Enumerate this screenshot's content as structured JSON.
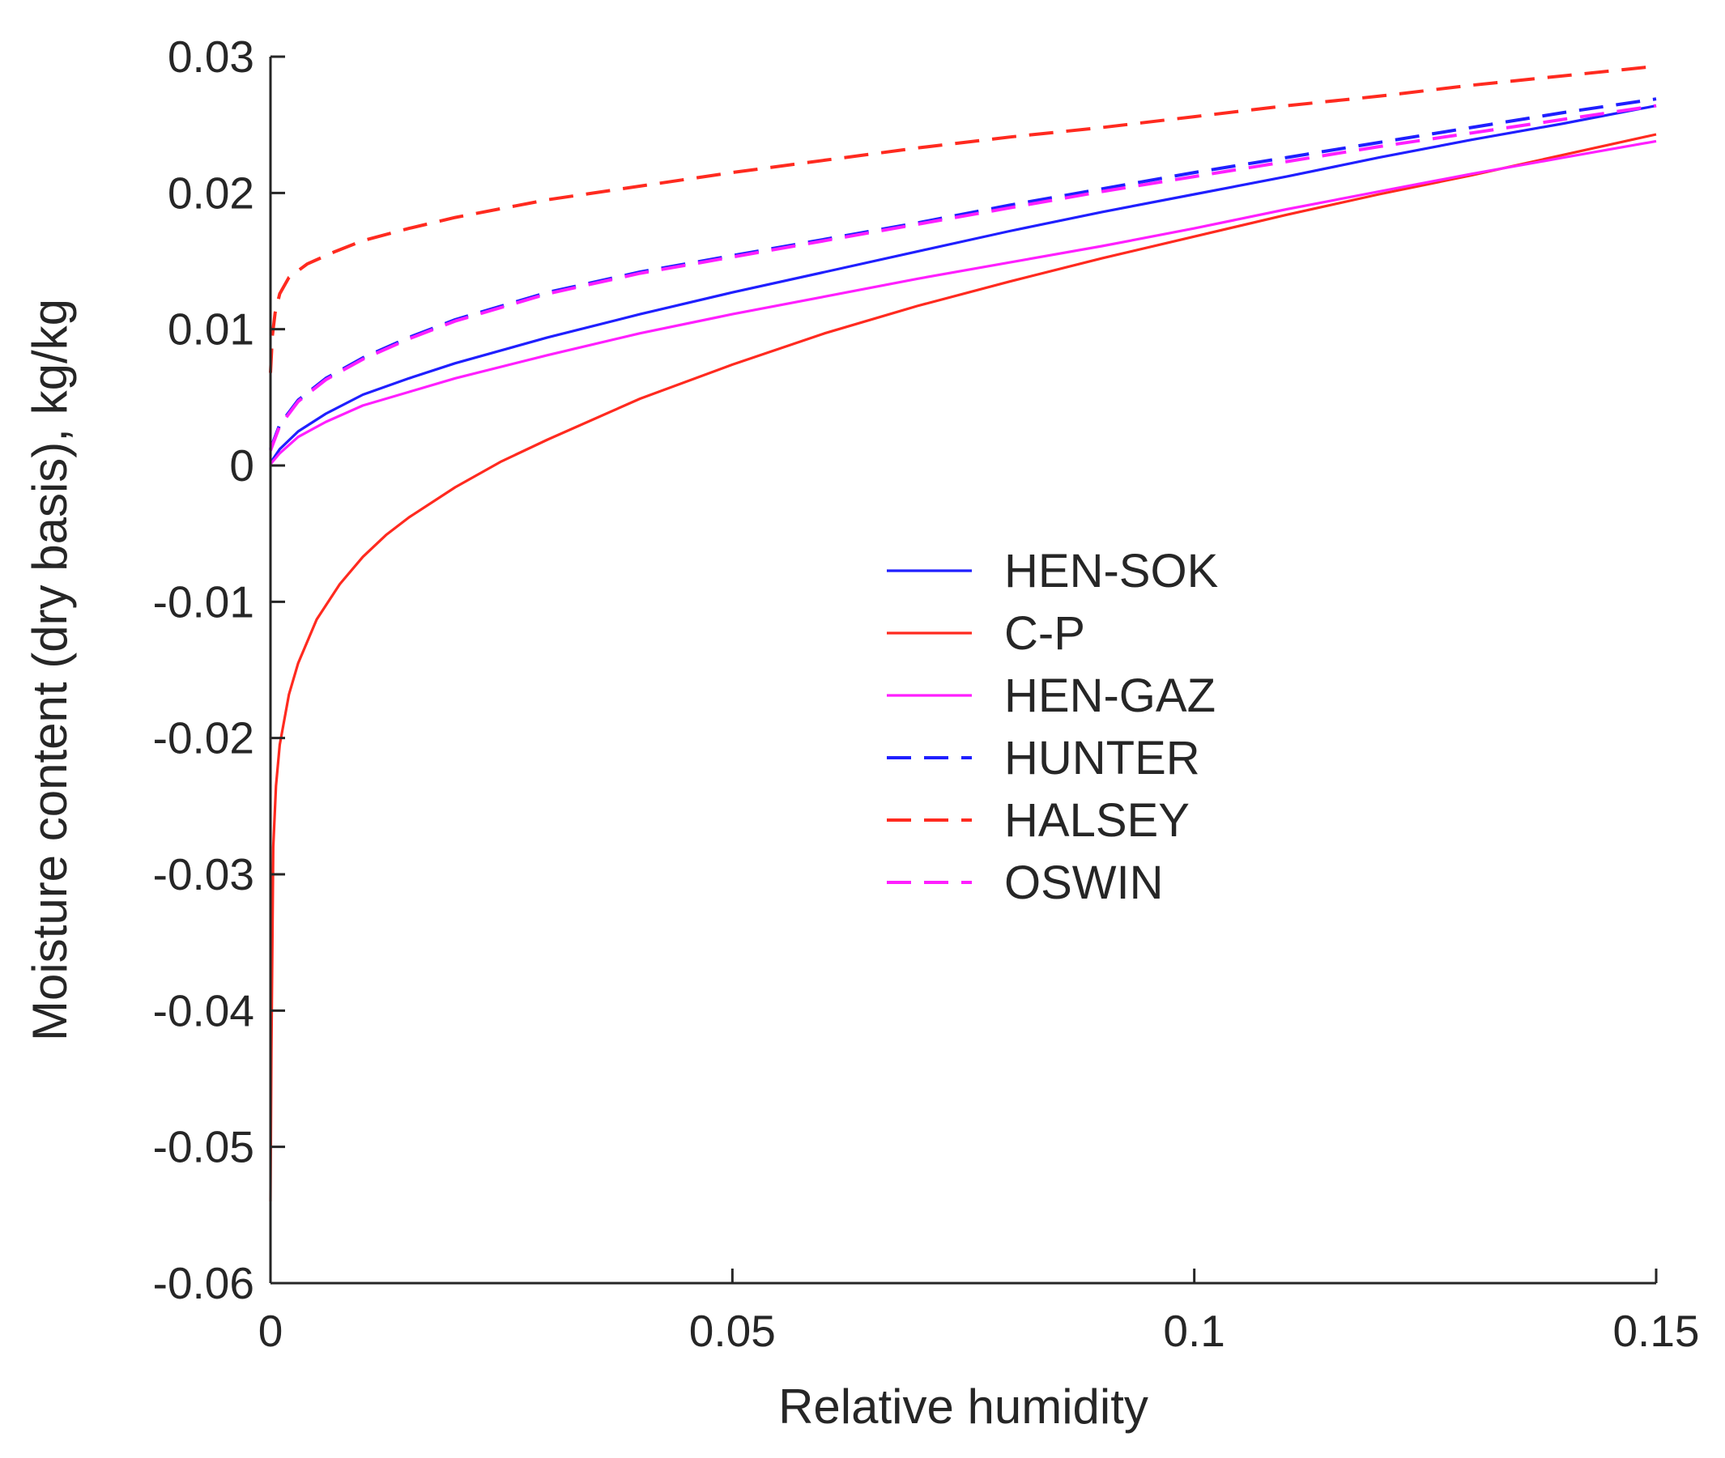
{
  "chart_data": {
    "type": "line",
    "title": "",
    "xlabel": "Relative humidity",
    "ylabel": "Moisture content (dry basis), kg/kg",
    "xlim": [
      0,
      0.15
    ],
    "ylim": [
      -0.06,
      0.03
    ],
    "x_ticks": [
      0,
      0.05,
      0.1,
      0.15
    ],
    "x_tick_labels": [
      "0",
      "0.05",
      "0.1",
      "0.15"
    ],
    "y_ticks": [
      0.03,
      0.02,
      0.01,
      0,
      -0.01,
      -0.02,
      -0.03,
      -0.04,
      -0.05,
      -0.06
    ],
    "y_tick_labels": [
      "0.03",
      "0.02",
      "0.01",
      "0",
      "-0.01",
      "-0.02",
      "-0.03",
      "-0.04",
      "-0.05",
      "-0.06"
    ],
    "grid": false,
    "legend_position": "center-right",
    "series": [
      {
        "name": "HEN-SOK",
        "color": "#1f1fff",
        "dash": "solid",
        "x": [
          0,
          0.001,
          0.003,
          0.006,
          0.01,
          0.015,
          0.02,
          0.03,
          0.04,
          0.05,
          0.06,
          0.07,
          0.08,
          0.09,
          0.1,
          0.11,
          0.12,
          0.13,
          0.14,
          0.15
        ],
        "y": [
          0.0002,
          0.0012,
          0.0025,
          0.0038,
          0.0052,
          0.0064,
          0.0075,
          0.0094,
          0.0111,
          0.0127,
          0.0142,
          0.0157,
          0.0172,
          0.0186,
          0.0199,
          0.0212,
          0.0226,
          0.0239,
          0.0251,
          0.0264
        ]
      },
      {
        "name": "C-P",
        "color": "#ff2a1f",
        "dash": "solid",
        "x": [
          0,
          0.0001,
          0.0003,
          0.0006,
          0.001,
          0.002,
          0.003,
          0.005,
          0.0075,
          0.01,
          0.0125,
          0.015,
          0.02,
          0.025,
          0.03,
          0.04,
          0.05,
          0.06,
          0.07,
          0.08,
          0.09,
          0.1,
          0.11,
          0.12,
          0.13,
          0.14,
          0.15
        ],
        "y": [
          -0.054,
          -0.043,
          -0.028,
          -0.0235,
          -0.0205,
          -0.0168,
          -0.0145,
          -0.0113,
          -0.0087,
          -0.0067,
          -0.0051,
          -0.0038,
          -0.0016,
          0.0003,
          0.0019,
          0.0049,
          0.0074,
          0.0097,
          0.0117,
          0.0135,
          0.0152,
          0.0168,
          0.0184,
          0.0199,
          0.0213,
          0.0228,
          0.0243
        ]
      },
      {
        "name": "HEN-GAZ",
        "color": "#ff1fff",
        "dash": "solid",
        "x": [
          0,
          0.001,
          0.003,
          0.006,
          0.01,
          0.015,
          0.02,
          0.03,
          0.04,
          0.05,
          0.06,
          0.07,
          0.08,
          0.09,
          0.1,
          0.11,
          0.12,
          0.13,
          0.14,
          0.15
        ],
        "y": [
          0.0001,
          0.0009,
          0.0021,
          0.0032,
          0.0044,
          0.0054,
          0.0064,
          0.0081,
          0.0097,
          0.0111,
          0.0124,
          0.0137,
          0.0149,
          0.0161,
          0.0174,
          0.0188,
          0.0201,
          0.0214,
          0.0226,
          0.0238
        ]
      },
      {
        "name": "HUNTER",
        "color": "#1f1fff",
        "dash": "dashed",
        "x": [
          0,
          0.001,
          0.003,
          0.006,
          0.01,
          0.015,
          0.02,
          0.03,
          0.04,
          0.05,
          0.06,
          0.07,
          0.08,
          0.09,
          0.1,
          0.11,
          0.12,
          0.13,
          0.14,
          0.15
        ],
        "y": [
          0.0012,
          0.003,
          0.0048,
          0.0064,
          0.0079,
          0.0094,
          0.0107,
          0.0127,
          0.0142,
          0.0154,
          0.0166,
          0.0178,
          0.0191,
          0.0203,
          0.0215,
          0.0226,
          0.0237,
          0.0248,
          0.0259,
          0.0269
        ]
      },
      {
        "name": "HALSEY",
        "color": "#ff2a1f",
        "dash": "dashed",
        "x": [
          0,
          0.0002,
          0.0005,
          0.001,
          0.002,
          0.004,
          0.007,
          0.01,
          0.015,
          0.02,
          0.03,
          0.04,
          0.05,
          0.06,
          0.07,
          0.08,
          0.09,
          0.1,
          0.11,
          0.12,
          0.13,
          0.14,
          0.15
        ],
        "y": [
          0.0068,
          0.0095,
          0.0112,
          0.0126,
          0.0138,
          0.0148,
          0.0157,
          0.0165,
          0.0174,
          0.0182,
          0.0195,
          0.0205,
          0.0215,
          0.0224,
          0.0233,
          0.0241,
          0.0248,
          0.0256,
          0.0264,
          0.0271,
          0.0279,
          0.0286,
          0.0293
        ]
      },
      {
        "name": "OSWIN",
        "color": "#ff1fff",
        "dash": "dashed",
        "x": [
          0,
          0.001,
          0.003,
          0.006,
          0.01,
          0.015,
          0.02,
          0.03,
          0.04,
          0.05,
          0.06,
          0.07,
          0.08,
          0.09,
          0.1,
          0.11,
          0.12,
          0.13,
          0.14,
          0.15
        ],
        "y": [
          0.0011,
          0.0029,
          0.0047,
          0.0063,
          0.0078,
          0.0093,
          0.0106,
          0.0126,
          0.0141,
          0.0153,
          0.0165,
          0.0177,
          0.0189,
          0.0201,
          0.0212,
          0.0223,
          0.0234,
          0.0244,
          0.0254,
          0.0264
        ]
      }
    ]
  }
}
